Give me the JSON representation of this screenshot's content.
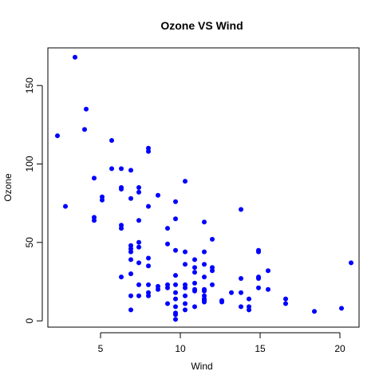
{
  "chart_data": {
    "type": "scatter",
    "title": "Ozone VS Wind",
    "xlabel": "Wind",
    "ylabel": "Ozone",
    "xlim": [
      1.7,
      21.2
    ],
    "ylim": [
      -4,
      174
    ],
    "xticks": [
      5,
      10,
      15,
      20
    ],
    "yticks": [
      0,
      50,
      100,
      150
    ],
    "grid": false,
    "legend": "none",
    "point_color": "#0000ff",
    "series": [
      {
        "points": [
          [
            3.4,
            168
          ],
          [
            4.1,
            135
          ],
          [
            2.3,
            118
          ],
          [
            4.0,
            122
          ],
          [
            5.7,
            115
          ],
          [
            8.0,
            110
          ],
          [
            8.0,
            108
          ],
          [
            6.3,
            97
          ],
          [
            5.7,
            97
          ],
          [
            6.9,
            96
          ],
          [
            4.6,
            91
          ],
          [
            10.3,
            89
          ],
          [
            6.3,
            85
          ],
          [
            6.3,
            84
          ],
          [
            7.4,
            85
          ],
          [
            7.4,
            82
          ],
          [
            8.6,
            80
          ],
          [
            5.1,
            79
          ],
          [
            5.1,
            77
          ],
          [
            6.9,
            78
          ],
          [
            9.7,
            76
          ],
          [
            2.8,
            73
          ],
          [
            8.0,
            73
          ],
          [
            13.8,
            71
          ],
          [
            9.7,
            65
          ],
          [
            4.6,
            66
          ],
          [
            4.6,
            64
          ],
          [
            7.4,
            64
          ],
          [
            11.5,
            63
          ],
          [
            6.3,
            61
          ],
          [
            6.3,
            59
          ],
          [
            9.2,
            59
          ],
          [
            12.0,
            52
          ],
          [
            7.4,
            50
          ],
          [
            9.2,
            49
          ],
          [
            6.9,
            48
          ],
          [
            7.4,
            47
          ],
          [
            6.9,
            46
          ],
          [
            6.9,
            44
          ],
          [
            9.7,
            45
          ],
          [
            14.9,
            45
          ],
          [
            14.9,
            44
          ],
          [
            11.5,
            44
          ],
          [
            10.3,
            44
          ],
          [
            8.0,
            40
          ],
          [
            6.9,
            39
          ],
          [
            10.9,
            39
          ],
          [
            7.4,
            37
          ],
          [
            10.3,
            36
          ],
          [
            11.5,
            36
          ],
          [
            20.7,
            37
          ],
          [
            8.0,
            35
          ],
          [
            10.9,
            34
          ],
          [
            12.0,
            34
          ],
          [
            12.0,
            32
          ],
          [
            15.5,
            32
          ],
          [
            6.9,
            30
          ],
          [
            10.9,
            31
          ],
          [
            9.7,
            29
          ],
          [
            14.9,
            28
          ],
          [
            14.9,
            27
          ],
          [
            6.3,
            28
          ],
          [
            11.5,
            28
          ],
          [
            13.8,
            27
          ],
          [
            10.9,
            24
          ],
          [
            9.7,
            23
          ],
          [
            12.0,
            23
          ],
          [
            14.9,
            21
          ],
          [
            7.4,
            23
          ],
          [
            10.3,
            23
          ],
          [
            10.3,
            21
          ],
          [
            8.0,
            23
          ],
          [
            8.6,
            22
          ],
          [
            9.2,
            23
          ],
          [
            8.6,
            20
          ],
          [
            9.2,
            21
          ],
          [
            11.5,
            20
          ],
          [
            10.9,
            20
          ],
          [
            10.9,
            19
          ],
          [
            11.5,
            19
          ],
          [
            13.2,
            18
          ],
          [
            13.8,
            18
          ],
          [
            15.5,
            20
          ],
          [
            9.7,
            18
          ],
          [
            8.0,
            18
          ],
          [
            8.0,
            16
          ],
          [
            7.4,
            16
          ],
          [
            6.9,
            16
          ],
          [
            10.3,
            16
          ],
          [
            11.5,
            16
          ],
          [
            9.7,
            14
          ],
          [
            11.5,
            14
          ],
          [
            14.3,
            14
          ],
          [
            16.6,
            14
          ],
          [
            12.6,
            13
          ],
          [
            11.5,
            13
          ],
          [
            11.5,
            12
          ],
          [
            12.6,
            12
          ],
          [
            16.6,
            11
          ],
          [
            9.2,
            11
          ],
          [
            10.3,
            11
          ],
          [
            10.9,
            9
          ],
          [
            9.7,
            9
          ],
          [
            14.3,
            9
          ],
          [
            13.8,
            9
          ],
          [
            10.3,
            7
          ],
          [
            6.9,
            7
          ],
          [
            14.3,
            7
          ],
          [
            9.7,
            5
          ],
          [
            18.4,
            6
          ],
          [
            20.1,
            8
          ],
          [
            9.7,
            4
          ],
          [
            9.7,
            1
          ]
        ]
      }
    ]
  }
}
